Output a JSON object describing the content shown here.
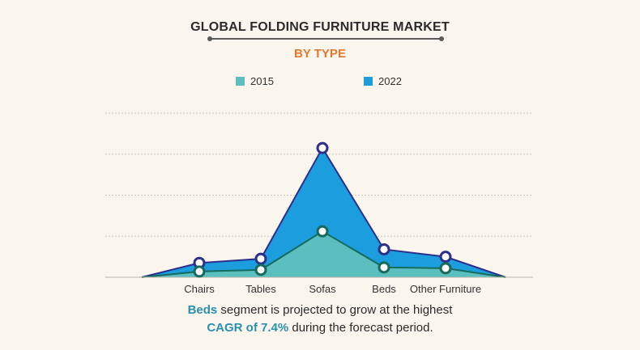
{
  "header": {
    "title": "GLOBAL FOLDING FURNITURE MARKET",
    "subtitle": "BY TYPE"
  },
  "colors": {
    "series_2015": "#5bbfbf",
    "series_2022": "#1c9ede",
    "marker_2015": "#176b5a",
    "marker_2022": "#2d2f8c",
    "subtitle": "#e8772e",
    "highlight": "#2b8fb0"
  },
  "chart_data": {
    "type": "area",
    "categories": [
      "",
      "Chairs",
      "Tables",
      "Sofas",
      "Beds",
      "Other Furniture",
      ""
    ],
    "series": [
      {
        "name": "2015",
        "values": [
          0,
          1.4,
          1.8,
          11.2,
          2.4,
          2.2,
          0
        ]
      },
      {
        "name": "2022",
        "values": [
          0,
          3.5,
          4.5,
          31.5,
          6.8,
          5.0,
          0
        ]
      }
    ],
    "ylim": [
      0,
      40
    ],
    "grid": true,
    "legend": "top-center",
    "xlabel": "",
    "ylabel": ""
  },
  "caption": {
    "line1_highlight": "Beds",
    "line1_rest": " segment is projected to grow at the highest",
    "line2_highlight": "CAGR of 7.4%",
    "line2_rest": " during the forecast period."
  }
}
